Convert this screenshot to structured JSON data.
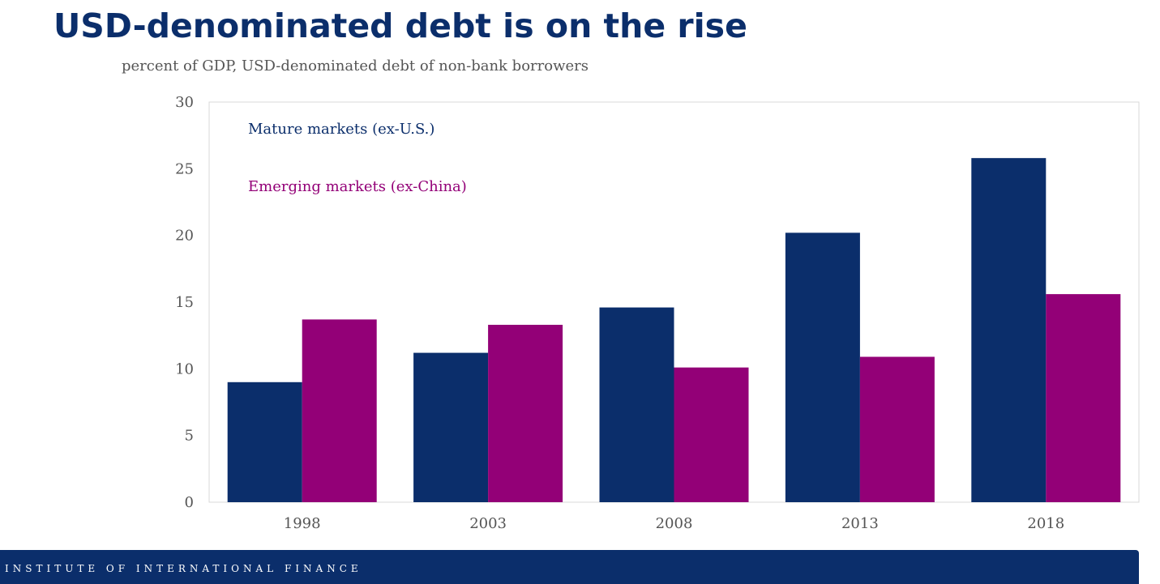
{
  "slide": {
    "title": "USD-denominated debt is on the rise",
    "footer": "INSTITUTE OF INTERNATIONAL FINANCE"
  },
  "chart_data": {
    "type": "bar",
    "title": "USD-denominated debt is on the rise",
    "subtitle": "percent of GDP, USD-denominated debt of non-bank borrowers",
    "xlabel": "",
    "ylabel": "",
    "categories": [
      "1998",
      "2003",
      "2008",
      "2013",
      "2018"
    ],
    "series": [
      {
        "name": "Mature markets (ex-U.S.)",
        "color": "#0b2e6b",
        "values": [
          9.0,
          11.2,
          14.6,
          20.2,
          25.8
        ]
      },
      {
        "name": "Emerging markets (ex-China)",
        "color": "#930077",
        "values": [
          13.7,
          13.3,
          10.1,
          10.9,
          15.6
        ]
      }
    ],
    "ylim": [
      0,
      30
    ],
    "yticks": [
      "0",
      "5",
      "10",
      "15",
      "20",
      "25",
      "30"
    ],
    "grid": false,
    "legend_position": "top-left"
  }
}
